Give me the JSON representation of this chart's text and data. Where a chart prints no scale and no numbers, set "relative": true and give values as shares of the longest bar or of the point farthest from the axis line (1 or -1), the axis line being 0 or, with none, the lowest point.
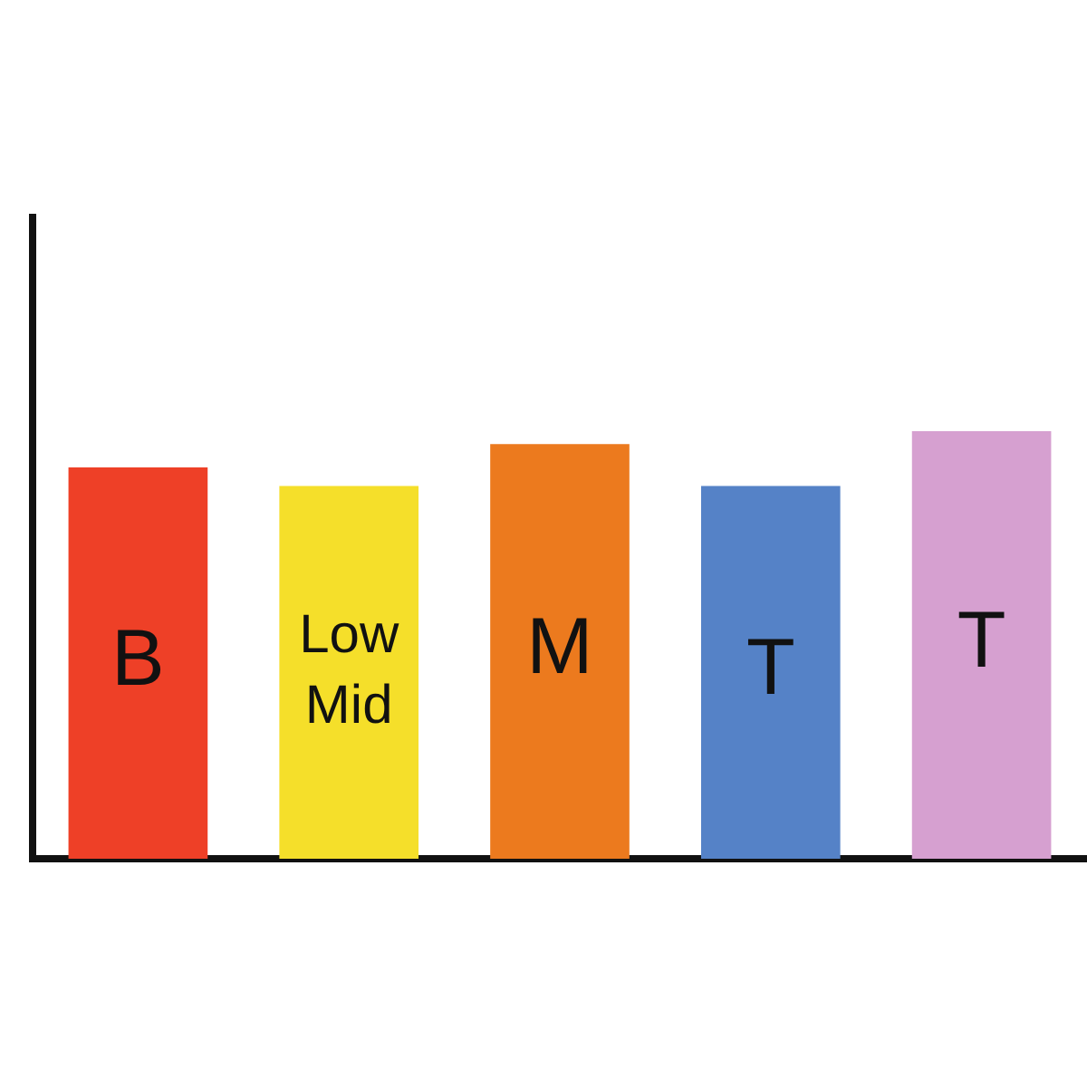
{
  "chart_data": {
    "type": "bar",
    "relative": true,
    "categories": [
      "B",
      "Low Mid",
      "M",
      "T",
      "T"
    ],
    "values": [
      0.915,
      0.872,
      0.97,
      0.872,
      1
    ],
    "colors": [
      "#ee4027",
      "#f5df2a",
      "#ec7a1e",
      "#5582c7",
      "#d6a0d0"
    ],
    "grid": false,
    "legend": false
  }
}
